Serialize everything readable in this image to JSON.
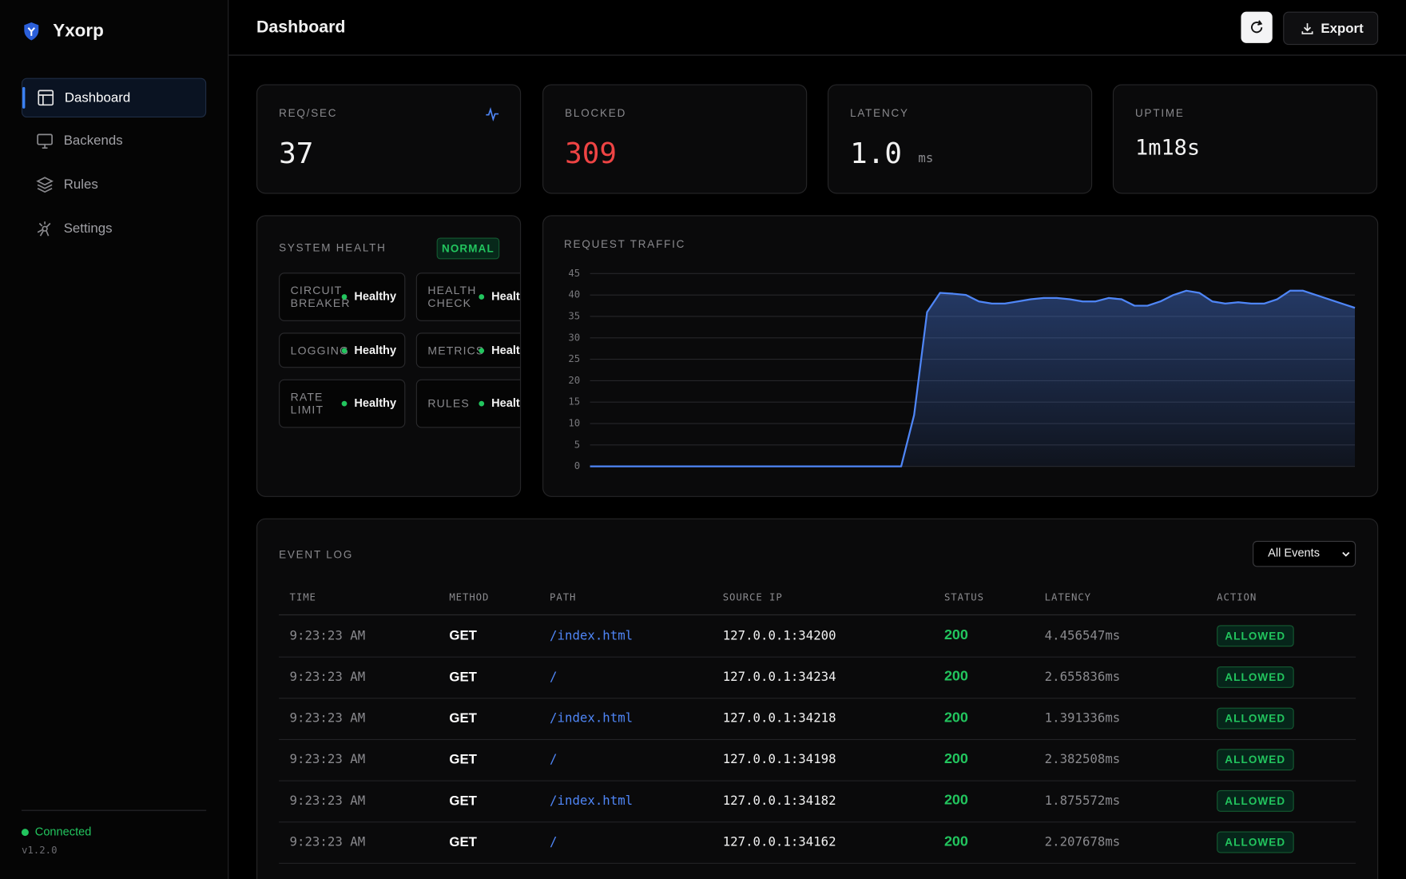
{
  "sidebar": {
    "brand": "Yxorp",
    "nav": [
      "Dashboard",
      "Backends",
      "Rules",
      "Settings"
    ],
    "status": "Connected",
    "version": "v1.2.0"
  },
  "header": {
    "title": "Dashboard",
    "export": "Export"
  },
  "stats": [
    {
      "label": "REQ/SEC",
      "value": "37"
    },
    {
      "label": "BLOCKED",
      "value": "309"
    },
    {
      "label": "LATENCY",
      "value": "1.0",
      "unit": "ms"
    },
    {
      "label": "UPTIME",
      "value": "1m18s"
    }
  ],
  "health": {
    "title": "SYSTEM HEALTH",
    "badge": "NORMAL",
    "items": [
      {
        "name": "CIRCUIT BREAKER",
        "status": "Healthy"
      },
      {
        "name": "HEALTH CHECK",
        "status": "Healthy"
      },
      {
        "name": "LOGGING",
        "status": "Healthy"
      },
      {
        "name": "METRICS",
        "status": "Healthy"
      },
      {
        "name": "RATE LIMIT",
        "status": "Healthy"
      },
      {
        "name": "RULES",
        "status": "Healthy"
      }
    ]
  },
  "chart_data": {
    "type": "area",
    "title": "REQUEST TRAFFIC",
    "color": "#4f86f7",
    "grid": true,
    "ylim": [
      0,
      45
    ],
    "yticks": [
      0,
      5,
      10,
      15,
      20,
      25,
      30,
      35,
      40,
      45
    ],
    "values": [
      0,
      0,
      0,
      0,
      0,
      0,
      0,
      0,
      0,
      0,
      0,
      0,
      0,
      0,
      0,
      0,
      0,
      0,
      0,
      0,
      0,
      0,
      0,
      0,
      0,
      12,
      36,
      40.5,
      40.3,
      40,
      38.5,
      38,
      38,
      38.5,
      39,
      39.3,
      39.3,
      39,
      38.5,
      38.5,
      39.3,
      39,
      37.5,
      37.5,
      38.5,
      40,
      41,
      40.5,
      38.5,
      38,
      38.3,
      38,
      38,
      39,
      41,
      41,
      40,
      39,
      38,
      37
    ]
  },
  "event_log": {
    "title": "EVENT LOG",
    "filter": "All Events",
    "columns": [
      "TIME",
      "METHOD",
      "PATH",
      "SOURCE IP",
      "STATUS",
      "LATENCY",
      "ACTION"
    ],
    "rows": [
      [
        "9:23:23 AM",
        "GET",
        "/index.html",
        "127.0.0.1:34200",
        "200",
        "4.456547ms",
        "ALLOWED"
      ],
      [
        "9:23:23 AM",
        "GET",
        "/",
        "127.0.0.1:34234",
        "200",
        "2.655836ms",
        "ALLOWED"
      ],
      [
        "9:23:23 AM",
        "GET",
        "/index.html",
        "127.0.0.1:34218",
        "200",
        "1.391336ms",
        "ALLOWED"
      ],
      [
        "9:23:23 AM",
        "GET",
        "/",
        "127.0.0.1:34198",
        "200",
        "2.382508ms",
        "ALLOWED"
      ],
      [
        "9:23:23 AM",
        "GET",
        "/index.html",
        "127.0.0.1:34182",
        "200",
        "1.875572ms",
        "ALLOWED"
      ],
      [
        "9:23:23 AM",
        "GET",
        "/",
        "127.0.0.1:34162",
        "200",
        "2.207678ms",
        "ALLOWED"
      ]
    ]
  }
}
